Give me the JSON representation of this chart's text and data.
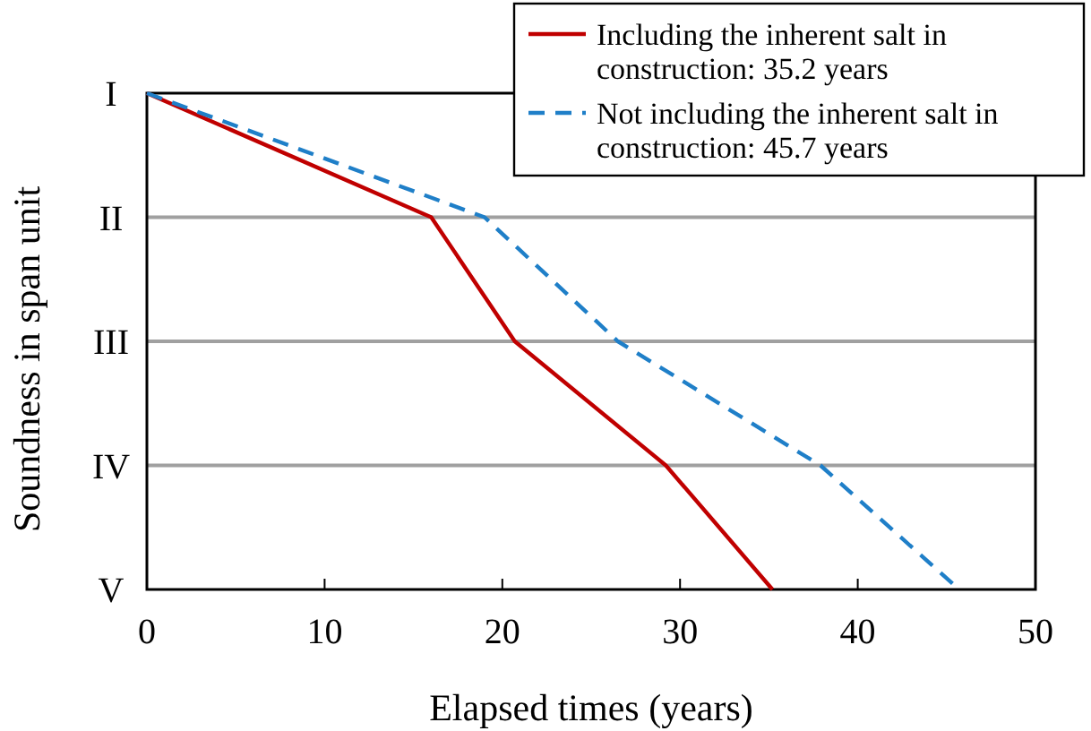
{
  "chart_data": {
    "type": "line",
    "orientation": "horizontal",
    "xlabel": "Elapsed times (years)",
    "ylabel": "Soundness in span unit",
    "xlim": [
      0,
      50
    ],
    "xticks": [
      0,
      10,
      20,
      30,
      40,
      50
    ],
    "categories": [
      "I",
      "II",
      "III",
      "IV",
      "V"
    ],
    "grid": "y",
    "legend": "top right",
    "series": [
      {
        "name": "Including the inherent salt in construction: 35.2 years",
        "color": "#c00000",
        "line_style": "solid",
        "values": [
          0,
          16,
          20.7,
          29.2,
          35.2
        ]
      },
      {
        "name": "Not including the inherent salt in construction: 45.7 years",
        "color": "#1f7fc8",
        "line_style": "dashed",
        "values": [
          0,
          19,
          26.5,
          37.9,
          45.7
        ]
      }
    ]
  }
}
